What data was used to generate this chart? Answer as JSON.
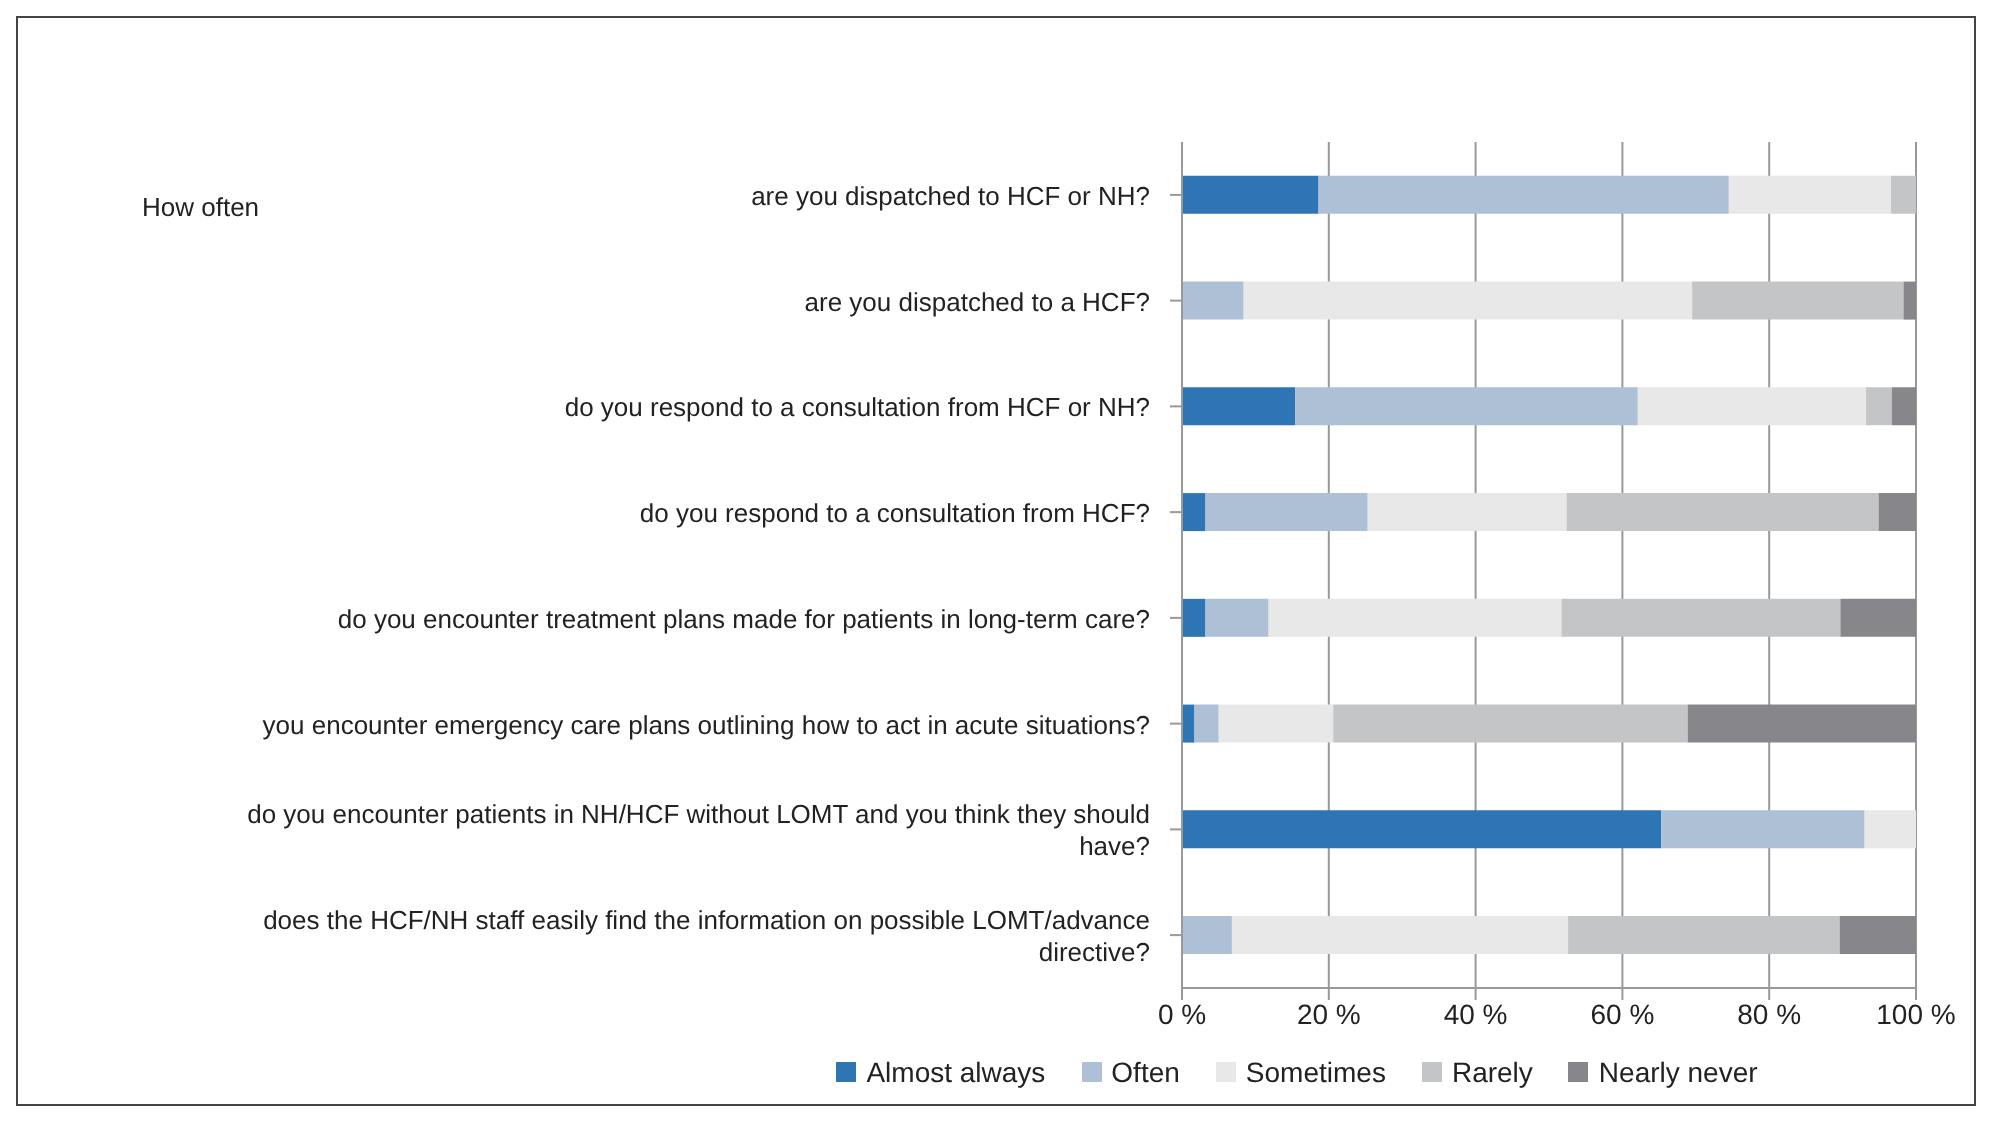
{
  "chart_data": {
    "type": "bar",
    "orientation": "horizontal",
    "stacked": true,
    "categories": [
      "are you dispatched to HCF or NH?",
      "are you dispatched to a HCF?",
      "do you respond to a consultation from HCF or NH?",
      "do you respond to a consultation from HCF?",
      "do you encounter treatment plans made for patients in long-term care?",
      "you encounter emergency care plans outlining how to act in acute situations?",
      "do you encounter patients in NH/HCF without LOMT and you think they should have?",
      "does the HCF/NH staff easily find the information on possible LOMT/advance directive?"
    ],
    "series": [
      {
        "name": "Almost always",
        "color": "#2e75b6",
        "values": [
          18.6,
          0,
          15.4,
          3.2,
          3.2,
          1.7,
          65.3,
          0
        ]
      },
      {
        "name": "Often",
        "color": "#adc0d6",
        "values": [
          55.9,
          8.4,
          46.7,
          22.1,
          8.6,
          3.3,
          27.7,
          6.8
        ]
      },
      {
        "name": "Sometimes",
        "color": "#e8e8e8",
        "values": [
          22.1,
          61.1,
          31.1,
          27.1,
          39.9,
          15.6,
          7,
          45.8
        ]
      },
      {
        "name": "Rarely",
        "color": "#c4c5c7",
        "values": [
          3.4,
          28.8,
          3.5,
          42.5,
          38,
          48.3,
          0,
          37
        ]
      },
      {
        "name": "Nearly never",
        "color": "#87868b",
        "values": [
          0,
          1.7,
          3.3,
          5.1,
          10.3,
          31.1,
          0,
          10.4
        ]
      }
    ],
    "xlim": [
      0,
      100
    ],
    "xticks": [
      {
        "value": 0,
        "label": "0 %"
      },
      {
        "value": 20,
        "label": "20 %"
      },
      {
        "value": 40,
        "label": "40 %"
      },
      {
        "value": 60,
        "label": "60 %"
      },
      {
        "value": 80,
        "label": "80 %"
      },
      {
        "value": 100,
        "label": "100 %"
      }
    ],
    "grid": "x",
    "legend": "bottom",
    "annotations": [
      "How often"
    ]
  }
}
